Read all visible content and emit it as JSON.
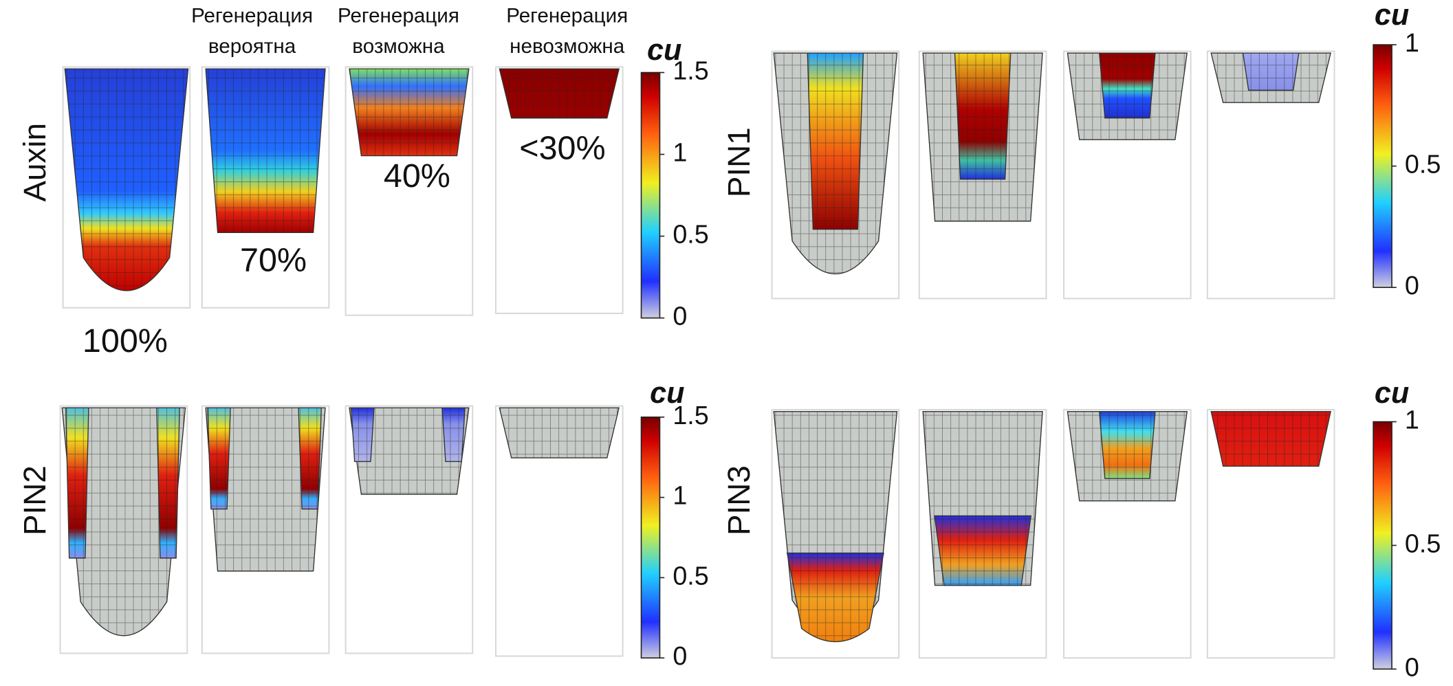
{
  "columns": [
    {
      "line1": "Регенерация",
      "line2": "вероятна"
    },
    {
      "line1": "Регенерация",
      "line2": "возможна"
    },
    {
      "line1": "Регенерация",
      "line2": "невозможна"
    }
  ],
  "percentages": [
    "100%",
    "70%",
    "40%",
    "<30%"
  ],
  "panels": [
    {
      "label": "Auxin",
      "colorbar": {
        "title": "cu",
        "lim": [
          0,
          1.5
        ],
        "ticks": [
          0,
          0.5,
          1,
          1.5
        ]
      }
    },
    {
      "label": "PIN1",
      "colorbar": {
        "title": "cu",
        "lim": [
          0,
          1
        ],
        "ticks": [
          0,
          0.5,
          1
        ]
      }
    },
    {
      "label": "PIN2",
      "colorbar": {
        "title": "cu",
        "lim": [
          0,
          1.5
        ],
        "ticks": [
          0,
          0.5,
          1,
          1.5
        ]
      }
    },
    {
      "label": "PIN3",
      "colorbar": {
        "title": "cu",
        "lim": [
          0,
          1
        ],
        "ticks": [
          0,
          0.5,
          1
        ]
      }
    }
  ]
}
